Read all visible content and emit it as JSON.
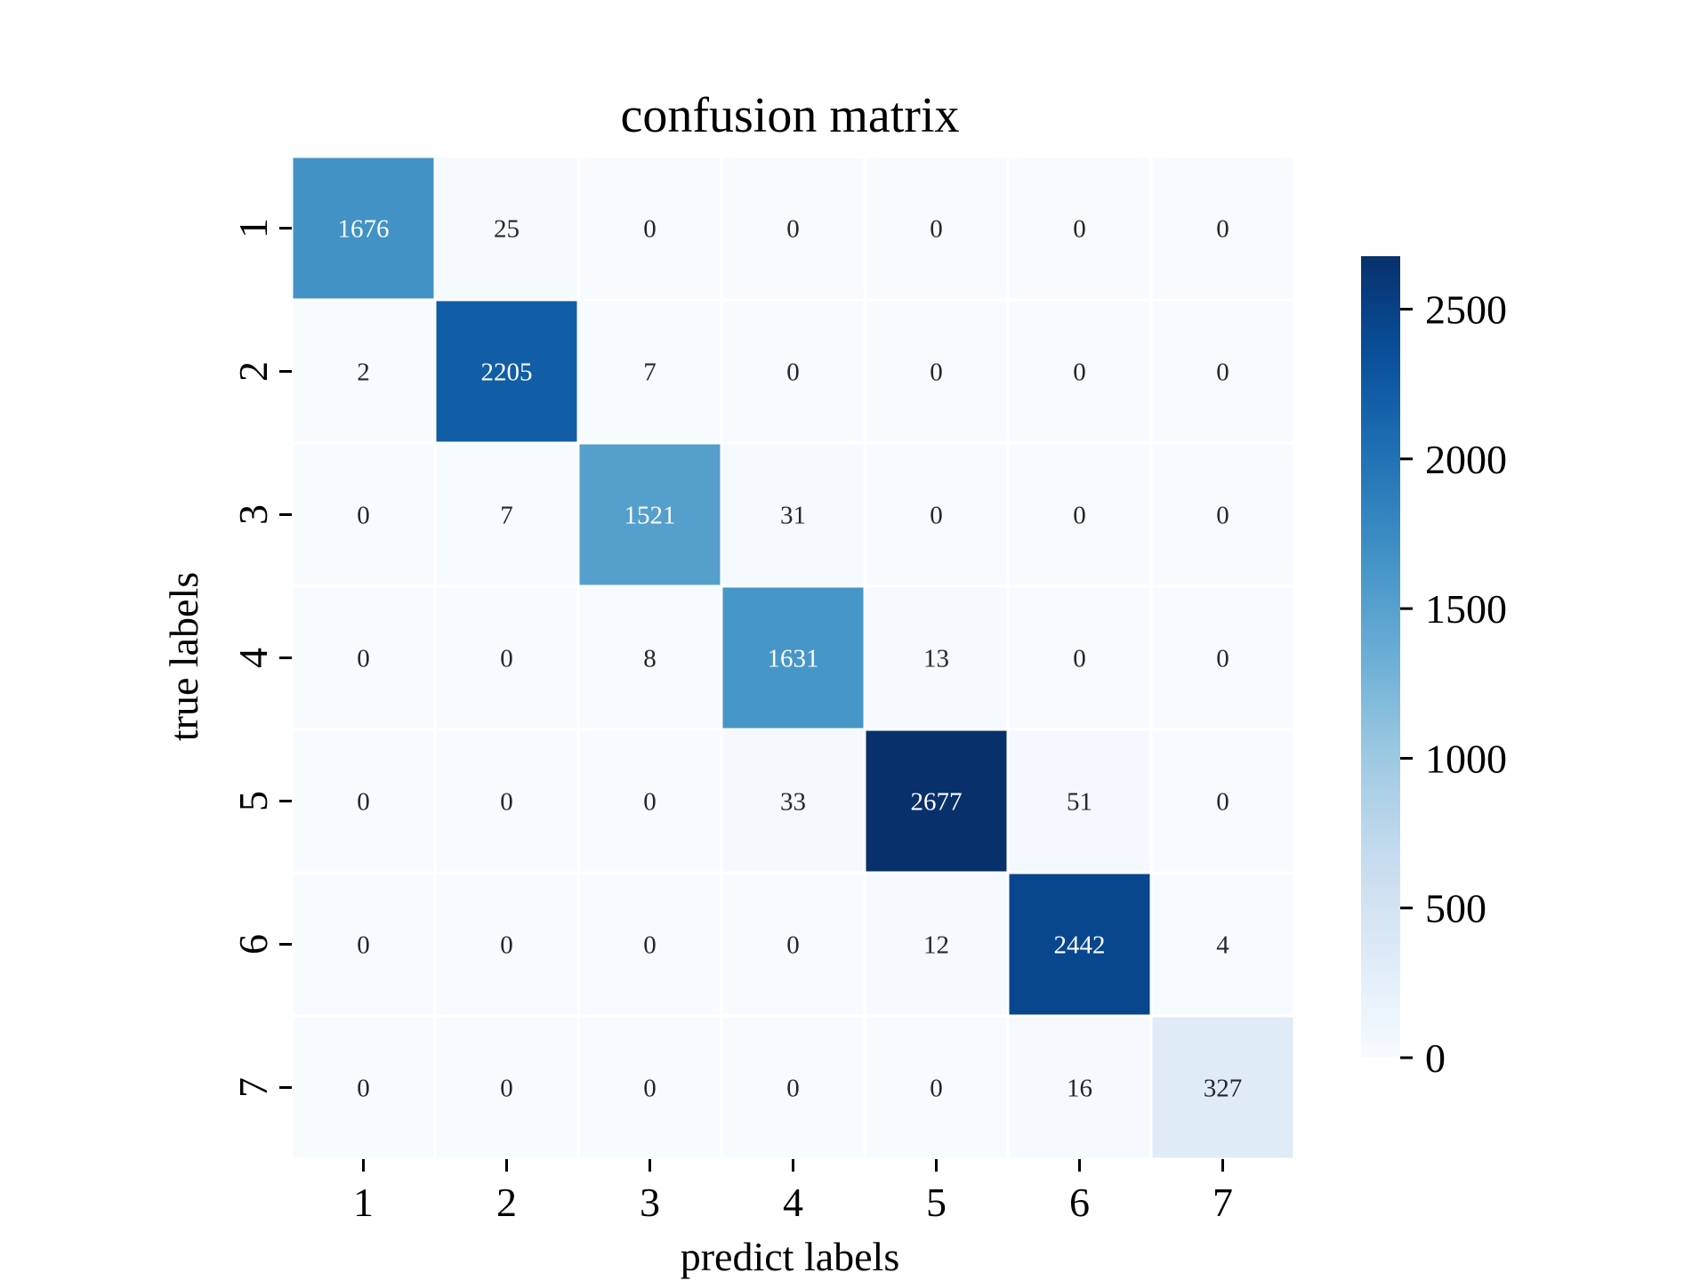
{
  "chart_data": {
    "type": "heatmap",
    "title": "confusion matrix",
    "xlabel": "predict labels",
    "ylabel": "true labels",
    "x_categories": [
      "1",
      "2",
      "3",
      "4",
      "5",
      "6",
      "7"
    ],
    "y_categories": [
      "1",
      "2",
      "3",
      "4",
      "5",
      "6",
      "7"
    ],
    "values": [
      [
        1676,
        25,
        0,
        0,
        0,
        0,
        0
      ],
      [
        2,
        2205,
        7,
        0,
        0,
        0,
        0
      ],
      [
        0,
        7,
        1521,
        31,
        0,
        0,
        0
      ],
      [
        0,
        0,
        8,
        1631,
        13,
        0,
        0
      ],
      [
        0,
        0,
        0,
        33,
        2677,
        51,
        0
      ],
      [
        0,
        0,
        0,
        0,
        12,
        2442,
        4
      ],
      [
        0,
        0,
        0,
        0,
        0,
        16,
        327
      ]
    ],
    "colormap": "Blues",
    "color_range": [
      0,
      2677
    ],
    "colorbar": {
      "ticks": [
        0,
        500,
        1000,
        1500,
        2000,
        2500
      ]
    },
    "colors": {
      "low": "#f7fbff",
      "high": "#08306b"
    }
  }
}
